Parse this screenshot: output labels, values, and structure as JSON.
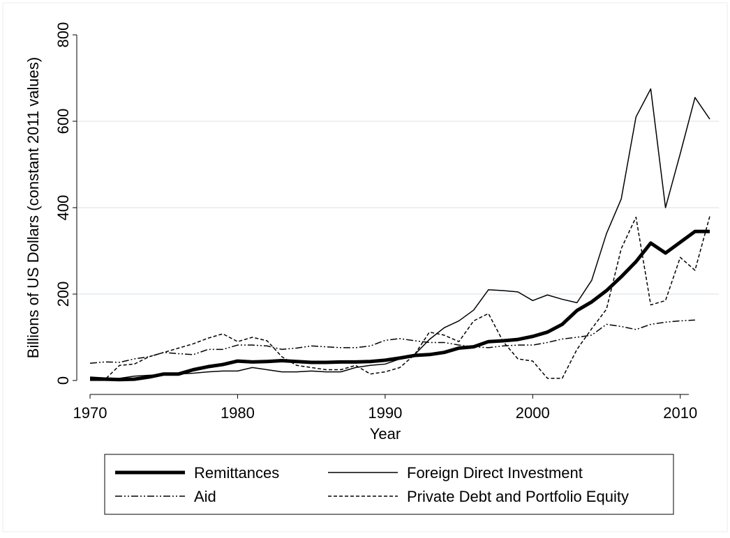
{
  "chart_data": {
    "type": "line",
    "x_label": "Year",
    "y_label": "Billions of US Dollars (constant 2011 values)",
    "x": [
      1970,
      1971,
      1972,
      1973,
      1974,
      1975,
      1976,
      1977,
      1978,
      1979,
      1980,
      1981,
      1982,
      1983,
      1984,
      1985,
      1986,
      1987,
      1988,
      1989,
      1990,
      1991,
      1992,
      1993,
      1994,
      1995,
      1996,
      1997,
      1998,
      1999,
      2000,
      2001,
      2002,
      2003,
      2004,
      2005,
      2006,
      2007,
      2008,
      2009,
      2010,
      2011,
      2012
    ],
    "xlim": [
      1970,
      2012
    ],
    "xticks": [
      1970,
      1980,
      1990,
      2000,
      2010
    ],
    "ylim": [
      0,
      800
    ],
    "yticks": [
      0,
      200,
      400,
      600,
      800
    ],
    "grid": true,
    "series": [
      {
        "name": "Remittances",
        "color": "#000000",
        "style": "thick",
        "values": [
          3,
          3,
          2,
          3,
          8,
          15,
          15,
          25,
          32,
          37,
          45,
          43,
          44,
          46,
          44,
          42,
          42,
          43,
          43,
          44,
          47,
          52,
          58,
          60,
          65,
          75,
          78,
          90,
          92,
          95,
          102,
          112,
          130,
          162,
          182,
          208,
          240,
          275,
          318,
          295,
          320,
          345,
          345
        ]
      },
      {
        "name": "Foreign Direct Investment",
        "color": "#000000",
        "style": "solid",
        "values": [
          8,
          6,
          5,
          10,
          12,
          14,
          15,
          17,
          20,
          22,
          22,
          30,
          25,
          20,
          20,
          22,
          20,
          20,
          30,
          35,
          38,
          50,
          60,
          95,
          122,
          138,
          163,
          210,
          208,
          205,
          185,
          198,
          188,
          180,
          232,
          340,
          420,
          610,
          675,
          400,
          525,
          655,
          605
        ]
      },
      {
        "name": "Aid",
        "color": "#000000",
        "style": "dashdot",
        "values": [
          40,
          43,
          42,
          50,
          55,
          65,
          62,
          60,
          72,
          72,
          82,
          82,
          80,
          72,
          75,
          80,
          78,
          76,
          76,
          80,
          93,
          97,
          92,
          88,
          88,
          82,
          78,
          76,
          80,
          82,
          82,
          88,
          96,
          100,
          105,
          130,
          125,
          118,
          130,
          135,
          138,
          140,
          null
        ]
      },
      {
        "name": "Private Debt and Portfolio Equity",
        "color": "#000000",
        "style": "dash",
        "values": [
          2,
          2,
          35,
          38,
          55,
          65,
          75,
          85,
          98,
          108,
          90,
          100,
          92,
          55,
          35,
          30,
          25,
          25,
          35,
          15,
          20,
          30,
          60,
          112,
          105,
          90,
          138,
          155,
          90,
          50,
          45,
          5,
          5,
          72,
          120,
          165,
          305,
          378,
          175,
          185,
          285,
          255,
          380
        ]
      }
    ]
  }
}
